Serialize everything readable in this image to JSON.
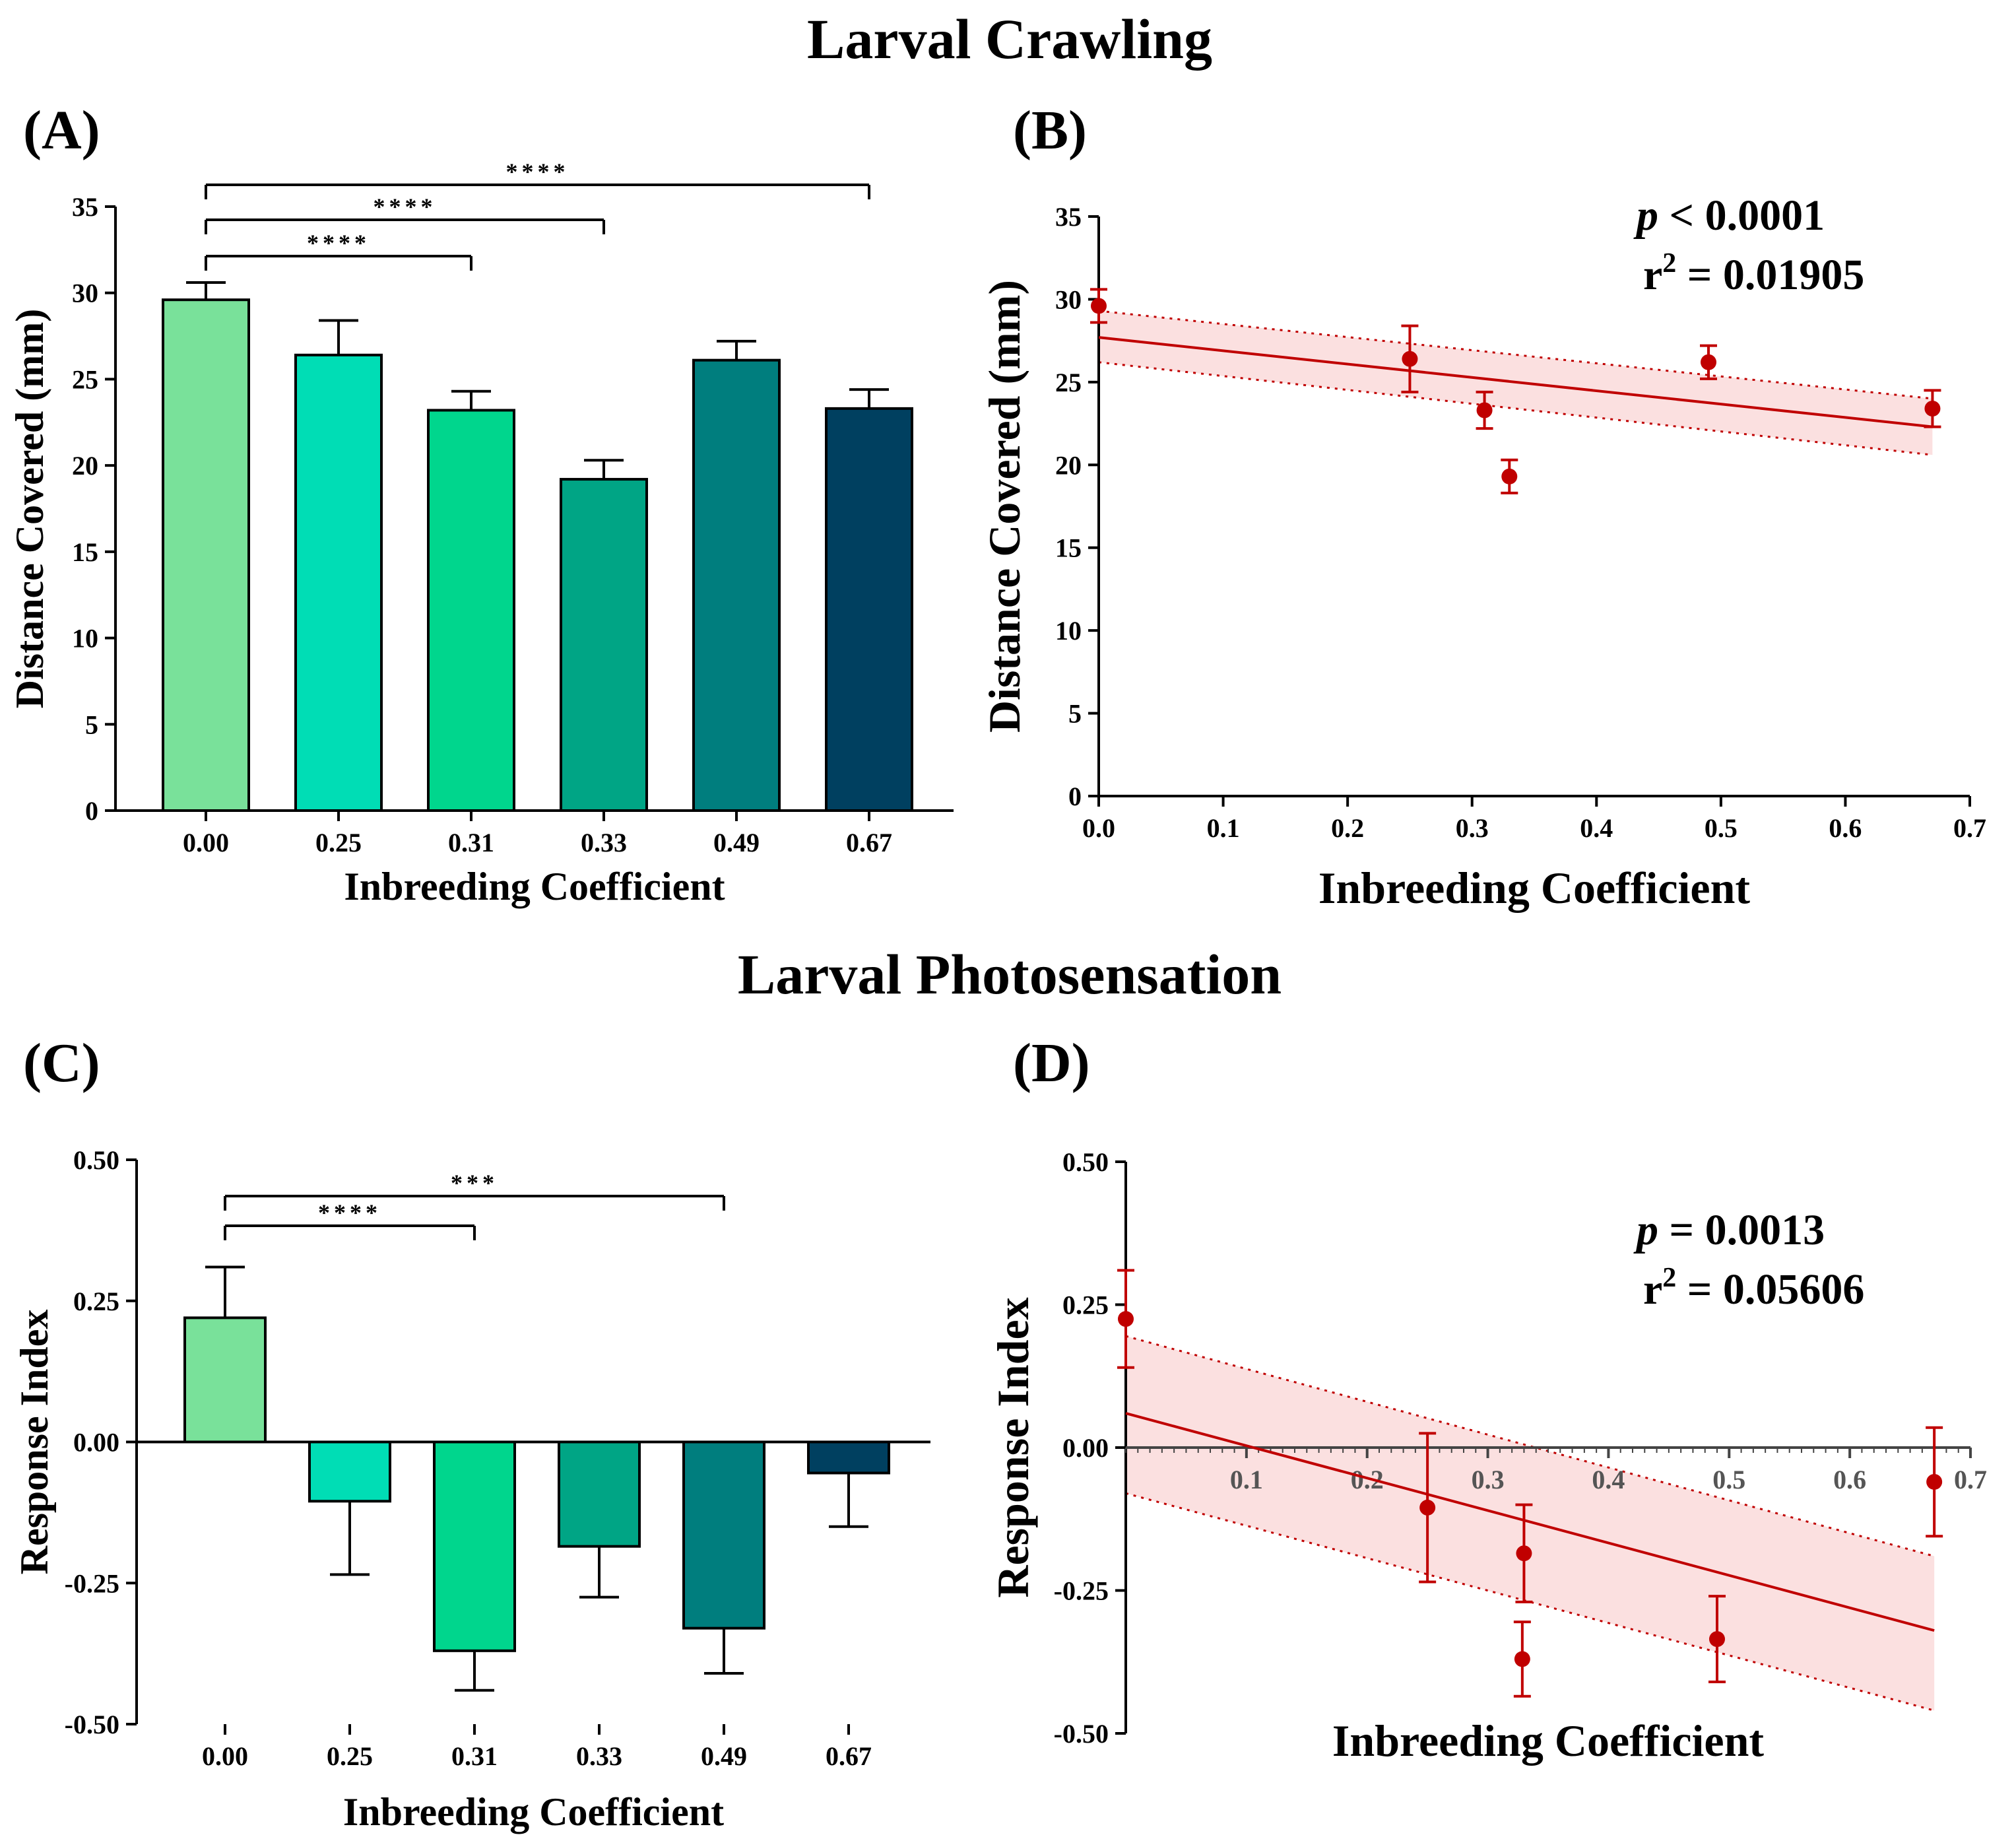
{
  "colors": {
    "bars": [
      "#79E19A",
      "#00DDB5",
      "#00D68D",
      "#00A585",
      "#007E7E",
      "#004060"
    ],
    "fit": "#C00000",
    "band": "#FADADB",
    "axis": "#000000"
  },
  "sections": {
    "crawling_title": "Larval Crawling",
    "photo_title": "Larval Photosensation"
  },
  "panels": {
    "A": "(A)",
    "B": "(B)",
    "C": "(C)",
    "D": "(D)"
  },
  "stats": {
    "B": {
      "p_label": "p",
      "p_text": " < 0.0001",
      "r_label": "r",
      "r_sup": "2",
      "r_text": " = 0.01905"
    },
    "D": {
      "p_label": "p",
      "p_text": " = 0.0013",
      "r_label": "r",
      "r_sup": "2",
      "r_text": " = 0.05606"
    }
  },
  "chart_data": [
    {
      "id": "A",
      "type": "bar",
      "categories": [
        "0.00",
        "0.25",
        "0.31",
        "0.33",
        "0.49",
        "0.67"
      ],
      "values": [
        29.6,
        26.4,
        23.2,
        19.2,
        26.1,
        23.3
      ],
      "errors": [
        1.0,
        2.0,
        1.1,
        1.1,
        1.1,
        1.1
      ],
      "xlabel": "Inbreeding Coefficient",
      "ylabel": "Distance Covered (mm)",
      "ylim": [
        0,
        35
      ],
      "yticks": [
        0,
        5,
        10,
        15,
        20,
        25,
        30,
        35
      ],
      "significance": [
        {
          "from": 0,
          "to": 2,
          "label": "****"
        },
        {
          "from": 0,
          "to": 3,
          "label": "****"
        },
        {
          "from": 0,
          "to": 5,
          "label": "****"
        }
      ]
    },
    {
      "id": "B",
      "type": "scatter",
      "x": [
        0.0,
        0.25,
        0.31,
        0.33,
        0.49,
        0.67
      ],
      "y": [
        29.6,
        26.4,
        23.3,
        19.3,
        26.2,
        23.4
      ],
      "errors": [
        1.0,
        2.0,
        1.1,
        1.0,
        1.0,
        1.1
      ],
      "fit": {
        "y_at_x0": 27.7,
        "y_at_xmax": 22.3,
        "x0": 0.0,
        "xmax": 0.67
      },
      "ci_upper": {
        "y_at_x0": 29.3,
        "y_at_xmax": 24.0
      },
      "ci_lower": {
        "y_at_x0": 26.2,
        "y_at_xmax": 20.6
      },
      "xlabel": "Inbreeding Coefficient",
      "ylabel": "Distance Covered (mm)",
      "xlim": [
        0.0,
        0.7
      ],
      "ylim": [
        0,
        35
      ],
      "xticks": [
        "0.0",
        "0.1",
        "0.2",
        "0.3",
        "0.4",
        "0.5",
        "0.6",
        "0.7"
      ],
      "yticks": [
        0,
        5,
        10,
        15,
        20,
        25,
        30,
        35
      ]
    },
    {
      "id": "C",
      "type": "bar",
      "categories": [
        "0.00",
        "0.25",
        "0.31",
        "0.33",
        "0.49",
        "0.67"
      ],
      "values": [
        0.22,
        -0.105,
        -0.37,
        -0.185,
        -0.33,
        -0.055
      ],
      "errors": [
        0.09,
        0.13,
        0.07,
        0.09,
        0.08,
        0.095
      ],
      "xlabel": "Inbreeding Coefficient",
      "ylabel": "Response Index",
      "ylim": [
        -0.5,
        0.5
      ],
      "yticks": [
        "-0.50",
        "-0.25",
        "0.00",
        "0.25",
        "0.50"
      ],
      "significance": [
        {
          "from": 0,
          "to": 2,
          "label": "****"
        },
        {
          "from": 0,
          "to": 4,
          "label": "***"
        }
      ]
    },
    {
      "id": "D",
      "type": "scatter",
      "x": [
        0.0,
        0.25,
        0.31,
        0.33,
        0.49,
        0.67
      ],
      "y": [
        0.225,
        -0.105,
        -0.37,
        -0.185,
        -0.335,
        -0.06
      ],
      "errors": [
        0.085,
        0.13,
        0.065,
        0.085,
        0.075,
        0.095
      ],
      "fit": {
        "y_at_x0": 0.06,
        "y_at_xmax": -0.32,
        "x0": 0.0,
        "xmax": 0.67
      },
      "ci_upper": {
        "y_at_x0": 0.195,
        "y_at_xmax": -0.19
      },
      "ci_lower": {
        "y_at_x0": -0.08,
        "y_at_xmax": -0.46
      },
      "xlabel": "Inbreeding Coefficient",
      "ylabel": "Response Index",
      "xlim": [
        0.0,
        0.7
      ],
      "ylim": [
        -0.5,
        0.5
      ],
      "xticks": [
        "0.1",
        "0.2",
        "0.3",
        "0.4",
        "0.5",
        "0.6",
        "0.7"
      ],
      "yticks": [
        "-0.50",
        "-0.25",
        "0.00",
        "0.25",
        "0.50"
      ]
    }
  ]
}
